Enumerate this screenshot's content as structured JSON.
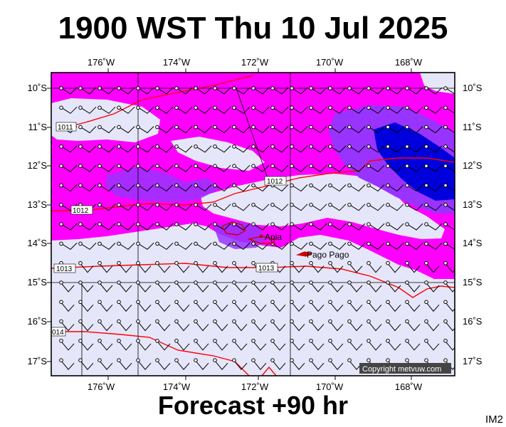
{
  "header": {
    "title": "1900 WST Thu 10 Jul 2025"
  },
  "footer": {
    "forecast": "Forecast +90 hr",
    "code": "IM2"
  },
  "map": {
    "lon_labels": [
      "176˚W",
      "174˚W",
      "172˚W",
      "170˚W",
      "168˚W"
    ],
    "lat_labels": [
      "10˚S",
      "11˚S",
      "12˚S",
      "13˚S",
      "14˚S",
      "15˚S",
      "16˚S",
      "17˚S"
    ],
    "places": {
      "apia": "Apia",
      "pago": "Pago Pago"
    },
    "isobars": {
      "i1011": "1011",
      "i1012a": "1012",
      "i1012b": "1012",
      "i1013a": "1013",
      "i1013b": "1013",
      "i1014": "014"
    },
    "copyright": "Copyright metvuw.com",
    "colors": {
      "calm": "#e6e6fa",
      "moderate": "#ff00ff",
      "strong": "#9933ff",
      "very_strong": "#0000dd",
      "isobar": "#ff0000",
      "land": "#cc0000"
    }
  }
}
